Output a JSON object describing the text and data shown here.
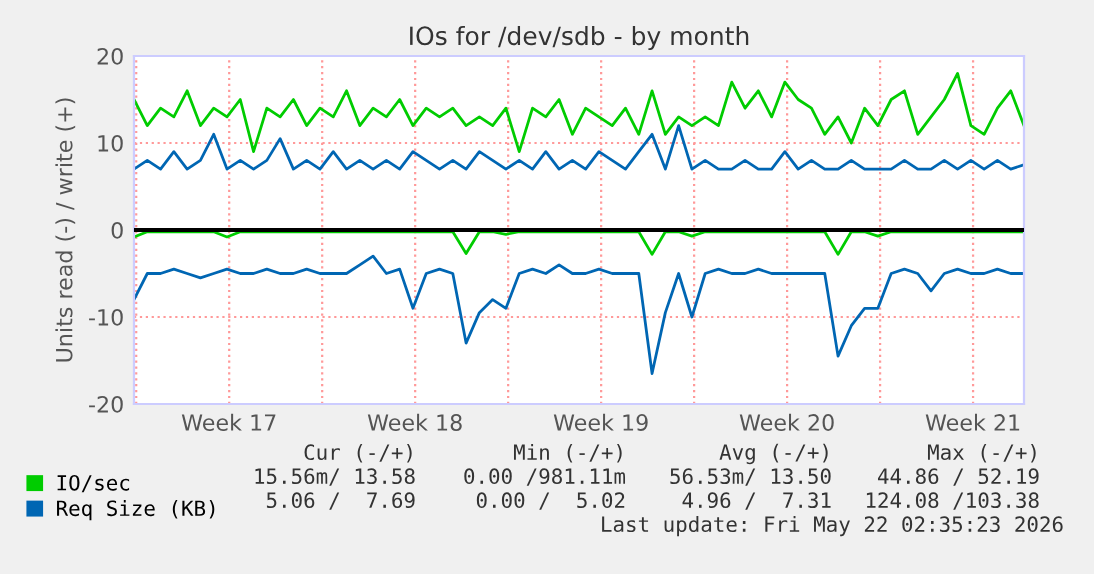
{
  "chart_data": {
    "type": "line",
    "title": "IOs for /dev/sdb - by month",
    "ylabel": "Units read (-) / write (+)",
    "x": [
      "2026-04-19T22:00",
      "2026-04-20T10:00",
      "2026-04-20T22:00",
      "2026-04-21T10:00",
      "2026-04-21T22:00",
      "2026-04-22T10:00",
      "2026-04-22T22:00",
      "2026-04-23T10:00",
      "2026-04-23T22:00",
      "2026-04-24T10:00",
      "2026-04-24T22:00",
      "2026-04-25T10:00",
      "2026-04-25T22:00",
      "2026-04-26T10:00",
      "2026-04-26T22:00",
      "2026-04-27T10:00",
      "2026-04-27T22:00",
      "2026-04-28T10:00",
      "2026-04-28T22:00",
      "2026-04-29T10:00",
      "2026-04-29T22:00",
      "2026-04-30T10:00",
      "2026-04-30T22:00",
      "2026-05-01T10:00",
      "2026-05-01T22:00",
      "2026-05-02T10:00",
      "2026-05-02T22:00",
      "2026-05-03T10:00",
      "2026-05-03T22:00",
      "2026-05-04T10:00",
      "2026-05-04T22:00",
      "2026-05-05T10:00",
      "2026-05-05T22:00",
      "2026-05-06T10:00",
      "2026-05-06T22:00",
      "2026-05-07T10:00",
      "2026-05-07T22:00",
      "2026-05-08T10:00",
      "2026-05-08T22:00",
      "2026-05-09T10:00",
      "2026-05-09T22:00",
      "2026-05-10T10:00",
      "2026-05-10T22:00",
      "2026-05-11T10:00",
      "2026-05-11T22:00",
      "2026-05-12T10:00",
      "2026-05-12T22:00",
      "2026-05-13T10:00",
      "2026-05-13T22:00",
      "2026-05-14T10:00",
      "2026-05-14T22:00",
      "2026-05-15T10:00",
      "2026-05-15T22:00",
      "2026-05-16T10:00",
      "2026-05-16T22:00",
      "2026-05-17T10:00",
      "2026-05-17T22:00",
      "2026-05-18T10:00",
      "2026-05-18T22:00",
      "2026-05-19T10:00",
      "2026-05-19T22:00",
      "2026-05-20T10:00",
      "2026-05-20T22:00",
      "2026-05-21T10:00",
      "2026-05-21T22:00",
      "2026-05-22T10:00",
      "2026-05-22T22:00",
      "2026-05-23T10:00"
    ],
    "series": [
      {
        "name": "IO/sec",
        "color": "#00cc00",
        "values": [
          15,
          12,
          14,
          13,
          16,
          12,
          14,
          13,
          15,
          9,
          14,
          13,
          15,
          12,
          14,
          13,
          16,
          12,
          14,
          13,
          15,
          12,
          14,
          13,
          14,
          12,
          13,
          12,
          14,
          9,
          14,
          13,
          15,
          11,
          14,
          13,
          12,
          14,
          11,
          16,
          11,
          13,
          12,
          13,
          12,
          17,
          14,
          16,
          13,
          17,
          15,
          14,
          11,
          13,
          10,
          14,
          12,
          15,
          16,
          11,
          13,
          15,
          18,
          12,
          11,
          14,
          16,
          12
        ]
      },
      {
        "color": "#00cc00",
        "values": [
          -0.8,
          -0.2,
          -0.2,
          -0.2,
          -0.2,
          -0.2,
          -0.2,
          -0.8,
          -0.2,
          -0.2,
          -0.2,
          -0.2,
          -0.2,
          -0.2,
          -0.2,
          -0.2,
          -0.2,
          -0.2,
          -0.2,
          -0.2,
          -0.2,
          -0.2,
          -0.2,
          -0.2,
          -0.2,
          -2.7,
          -0.2,
          -0.2,
          -0.5,
          -0.2,
          -0.2,
          -0.2,
          -0.2,
          -0.2,
          -0.2,
          -0.2,
          -0.2,
          -0.2,
          -0.2,
          -2.8,
          -0.2,
          -0.2,
          -0.7,
          -0.2,
          -0.2,
          -0.2,
          -0.2,
          -0.2,
          -0.2,
          -0.2,
          -0.2,
          -0.2,
          -0.2,
          -2.8,
          -0.2,
          -0.2,
          -0.7,
          -0.2,
          -0.2,
          -0.2,
          -0.2,
          -0.2,
          -0.2,
          -0.2,
          -0.2,
          -0.2,
          -0.2,
          -0.2
        ]
      },
      {
        "name": "Req Size (KB)",
        "color": "#0066b3",
        "values": [
          7,
          8,
          7,
          9,
          7,
          8,
          11,
          7,
          8,
          7,
          8,
          10.5,
          7,
          8,
          7,
          9,
          7,
          8,
          7,
          8,
          7,
          9,
          8,
          7,
          8,
          7,
          9,
          8,
          7,
          8,
          7,
          9,
          7,
          8,
          7,
          9,
          8,
          7,
          9,
          11,
          7,
          12,
          7,
          8,
          7,
          7,
          8,
          7,
          7,
          9,
          7,
          8,
          7,
          7,
          8,
          7,
          7,
          7,
          8,
          7,
          7,
          8,
          7,
          8,
          7,
          8,
          7,
          7.5
        ]
      },
      {
        "color": "#0066b3",
        "values": [
          -8,
          -5,
          -5,
          -4.5,
          -5,
          -5.5,
          -5,
          -4.5,
          -5,
          -5,
          -4.5,
          -5,
          -5,
          -4.5,
          -5,
          -5,
          -5,
          -4,
          -3,
          -5,
          -4.5,
          -9,
          -5,
          -4.5,
          -5,
          -13,
          -9.5,
          -8,
          -9,
          -5,
          -4.5,
          -5,
          -4,
          -5,
          -5,
          -4.5,
          -5,
          -5,
          -5,
          -16.5,
          -9.5,
          -5,
          -10,
          -5,
          -4.5,
          -5,
          -5,
          -4.5,
          -5,
          -5,
          -5,
          -5,
          -5,
          -14.5,
          -11,
          -9,
          -9,
          -5,
          -4.5,
          -5,
          -7,
          -5,
          -4.5,
          -5,
          -5,
          -4.5,
          -5,
          -5
        ]
      }
    ],
    "xlim": [
      "2026-04-19T22:00",
      "2026-05-23T10:00"
    ],
    "xticks": [
      {
        "value": "2026-04-20",
        "label": null
      },
      {
        "value": "2026-04-23T12:00",
        "label": "Week 17"
      },
      {
        "value": "2026-04-27",
        "label": null
      },
      {
        "value": "2026-04-30T12:00",
        "label": "Week 18"
      },
      {
        "value": "2026-05-04",
        "label": null
      },
      {
        "value": "2026-05-07T12:00",
        "label": "Week 19"
      },
      {
        "value": "2026-05-11",
        "label": null
      },
      {
        "value": "2026-05-14T12:00",
        "label": "Week 20"
      },
      {
        "value": "2026-05-18",
        "label": null
      },
      {
        "value": "2026-05-21T12:00",
        "label": "Week 21"
      }
    ],
    "ylim": [
      -20,
      20
    ],
    "yticks": [
      -20,
      -10,
      0,
      10,
      20
    ],
    "grid": true,
    "legend": "bottom",
    "ref_lines": [
      {
        "axis": "y",
        "value": 0,
        "color": "#000000"
      }
    ],
    "annotations": [
      "Cur (-/+)",
      "Min (-/+)",
      "Avg (-/+)",
      "Max (-/+)",
      "15.56m/ 13.58",
      "0.00 /981.11m",
      "56.53m/ 13.50",
      "44.86 / 52.19",
      "5.06 /  7.69",
      "0.00 /  5.02",
      "4.96 /  7.31",
      "124.08 /103.38",
      "Last update: Fri May 22 02:35:23 2026"
    ]
  }
}
